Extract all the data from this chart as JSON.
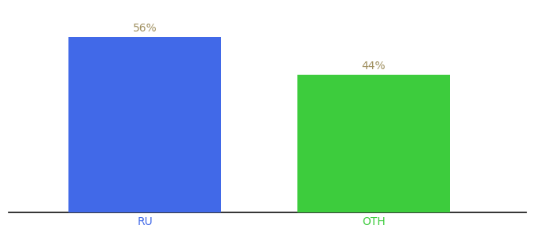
{
  "categories": [
    "RU",
    "OTH"
  ],
  "values": [
    56,
    44
  ],
  "bar_colors": [
    "#4169e8",
    "#3dcc3d"
  ],
  "label_texts": [
    "56%",
    "44%"
  ],
  "label_color": "#a09060",
  "xlabel_color": "#4169e8",
  "xlabel_oth_color": "#3dcc3d",
  "background_color": "#ffffff",
  "ylim": [
    0,
    65
  ],
  "bar_width": 0.28,
  "label_fontsize": 10,
  "tick_fontsize": 10,
  "spine_color": "#111111"
}
